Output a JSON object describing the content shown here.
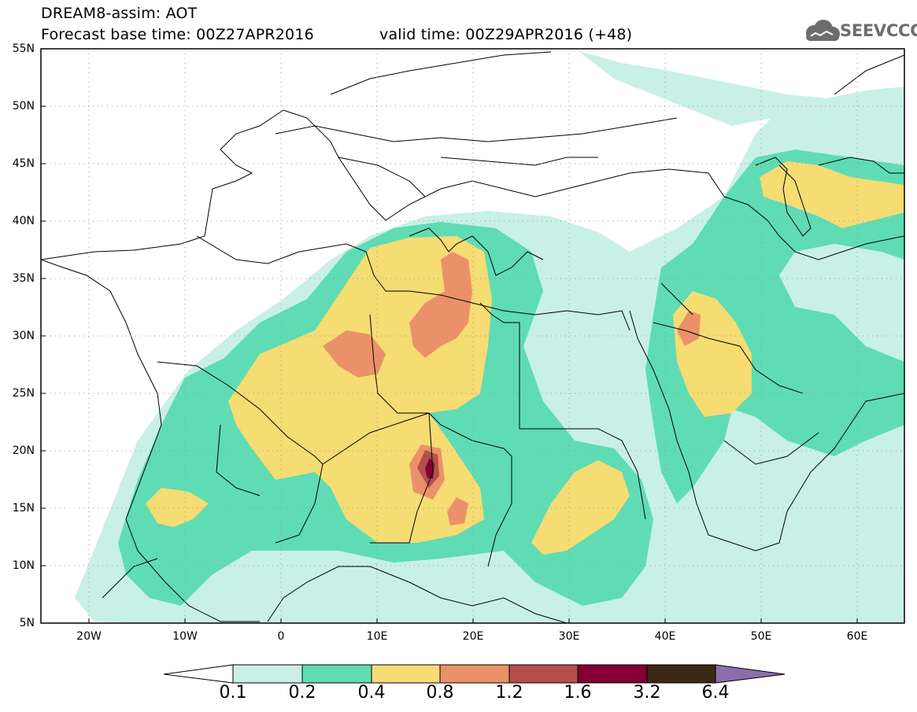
{
  "header": {
    "line1": "DREAM8-assim: AOT",
    "line2": "Forecast base time: 00Z27APR2016",
    "line3": "valid time: 00Z29APR2016 (+48)"
  },
  "logo": {
    "text": "SEEVCCC",
    "icon": "cloud-logo-icon"
  },
  "map": {
    "lat_labels": [
      "55N",
      "50N",
      "45N",
      "40N",
      "35N",
      "30N",
      "25N",
      "20N",
      "15N",
      "10N",
      "5N"
    ],
    "lon_labels": [
      "20W",
      "10W",
      "0",
      "10E",
      "20E",
      "30E",
      "40E",
      "50E",
      "60E"
    ],
    "lat_range": [
      5,
      55
    ],
    "lon_range": [
      -25,
      65
    ],
    "grid": "dotted"
  },
  "colorbar": {
    "labels": [
      "0.1",
      "0.2",
      "0.4",
      "0.8",
      "1.2",
      "1.6",
      "3.2",
      "6.4"
    ],
    "colors": [
      "#ffffff",
      "#c8f0e6",
      "#5fdcb4",
      "#f5dc73",
      "#eb9169",
      "#b4504b",
      "#820032",
      "#3c2814",
      "#8c6eaa"
    ]
  },
  "colors": {
    "c1": "#c8f0e6",
    "c2": "#5fdcb4",
    "c3": "#f5dc73",
    "c4": "#eb9169",
    "c5": "#b4504b",
    "c6": "#820032"
  }
}
